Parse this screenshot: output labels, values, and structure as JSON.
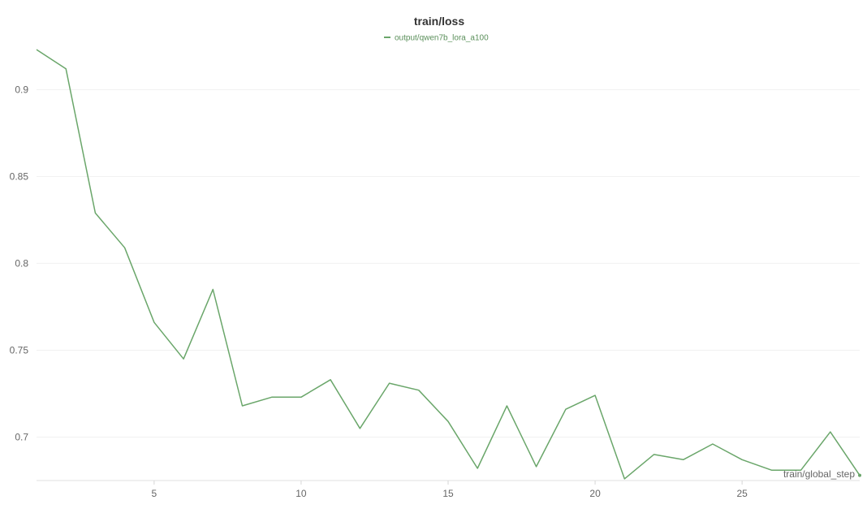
{
  "chart_data": {
    "type": "line",
    "title": "train/loss",
    "xlabel": "train/global_step",
    "ylabel": "",
    "xlim": [
      1,
      29
    ],
    "ylim": [
      0.675,
      0.924
    ],
    "x_ticks": [
      5,
      10,
      15,
      20,
      25
    ],
    "y_ticks": [
      0.7,
      0.75,
      0.8,
      0.85,
      0.9
    ],
    "y_tick_labels": [
      "0.7",
      "0.75",
      "0.8",
      "0.85",
      "0.9"
    ],
    "grid": true,
    "legend_position": "top-center",
    "color": "#6aa66a",
    "series": [
      {
        "name": "output/qwen7b_lora_a100",
        "x": [
          1,
          2,
          3,
          4,
          5,
          6,
          7,
          8,
          9,
          10,
          11,
          12,
          13,
          14,
          15,
          16,
          17,
          18,
          19,
          20,
          21,
          22,
          23,
          24,
          25,
          26,
          27,
          28,
          29
        ],
        "values": [
          0.923,
          0.912,
          0.829,
          0.809,
          0.766,
          0.745,
          0.785,
          0.718,
          0.723,
          0.723,
          0.733,
          0.705,
          0.731,
          0.727,
          0.709,
          0.682,
          0.718,
          0.683,
          0.716,
          0.724,
          0.676,
          0.69,
          0.687,
          0.696,
          0.687,
          0.681,
          0.681,
          0.703,
          0.678
        ]
      }
    ]
  }
}
